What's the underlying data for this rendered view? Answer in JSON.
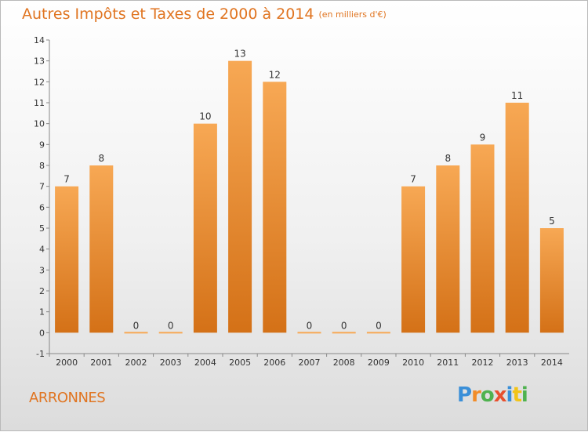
{
  "header": {
    "title": "Autres Impôts et Taxes de 2000 à 2014",
    "unit": "(en milliers d'€)"
  },
  "footer": {
    "commune": "ARRONNES",
    "logo": "Proxiti"
  },
  "colors": {
    "bar_top": "#f7a854",
    "bar_bottom": "#d47117",
    "title": "#e07420",
    "logo": [
      "#3a8fd8",
      "#f28c28",
      "#4fb24f",
      "#e8502e",
      "#3a8fd8",
      "#f2c418",
      "#4fb24f"
    ]
  },
  "chart_data": {
    "type": "bar",
    "title": "Autres Impôts et Taxes de 2000 à 2014",
    "subtitle": "(en milliers d'€)",
    "categories": [
      "2000",
      "2001",
      "2002",
      "2003",
      "2004",
      "2005",
      "2006",
      "2007",
      "2008",
      "2009",
      "2010",
      "2011",
      "2012",
      "2013",
      "2014"
    ],
    "values": [
      7,
      8,
      0,
      0,
      10,
      13,
      12,
      0,
      0,
      0,
      7,
      8,
      9,
      11,
      5
    ],
    "ylim": [
      -1,
      14
    ],
    "yticks": [
      -1,
      0,
      1,
      2,
      3,
      4,
      5,
      6,
      7,
      8,
      9,
      10,
      11,
      12,
      13,
      14
    ],
    "grid": false,
    "legend": "none"
  }
}
